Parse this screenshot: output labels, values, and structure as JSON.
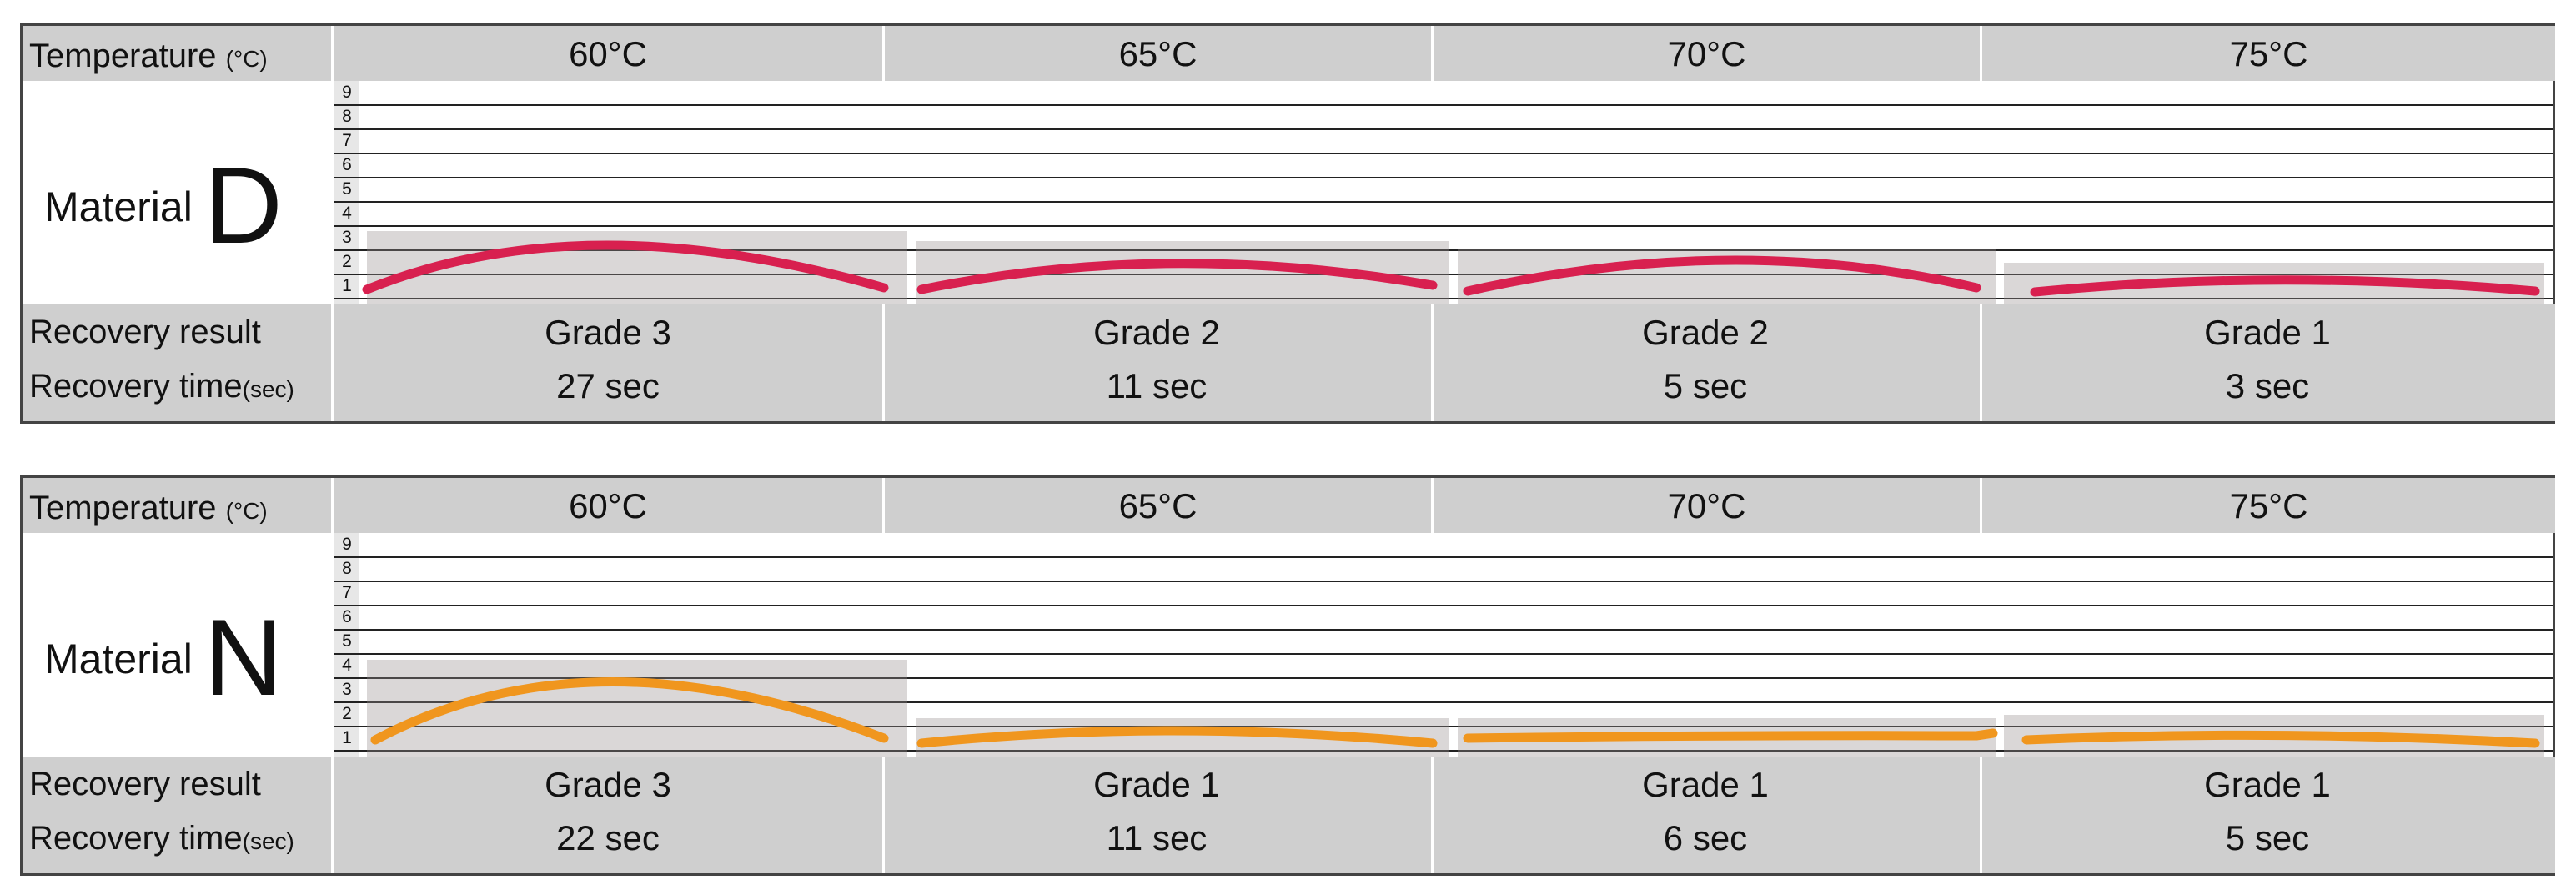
{
  "labels": {
    "temperature": "Temperature",
    "temperature_unit": "(°C)",
    "recovery_result": "Recovery result",
    "recovery_time": "Recovery time",
    "recovery_time_unit": "(sec)",
    "material_word": "Material"
  },
  "scale": [
    "9",
    "8",
    "7",
    "6",
    "5",
    "4",
    "3",
    "2",
    "1"
  ],
  "panels": [
    {
      "material": "D",
      "color": "#d8204f",
      "columns": [
        {
          "temperature": "60°C",
          "grade": "Grade 3",
          "grade_value": 3,
          "time": "27 sec"
        },
        {
          "temperature": "65°C",
          "grade": "Grade 2",
          "grade_value": 2,
          "time": "11 sec"
        },
        {
          "temperature": "70°C",
          "grade": "Grade 2",
          "grade_value": 2,
          "time": "5 sec"
        },
        {
          "temperature": "75°C",
          "grade": "Grade 1",
          "grade_value": 1,
          "time": "3 sec"
        }
      ]
    },
    {
      "material": "N",
      "color": "#f0961e",
      "columns": [
        {
          "temperature": "60°C",
          "grade": "Grade 3",
          "grade_value": 3,
          "time": "22 sec"
        },
        {
          "temperature": "65°C",
          "grade": "Grade 1",
          "grade_value": 1,
          "time": "11 sec"
        },
        {
          "temperature": "70°C",
          "grade": "Grade 1",
          "grade_value": 1,
          "time": "6 sec"
        },
        {
          "temperature": "75°C",
          "grade": "Grade 1",
          "grade_value": 1,
          "time": "5 sec"
        }
      ]
    }
  ]
}
